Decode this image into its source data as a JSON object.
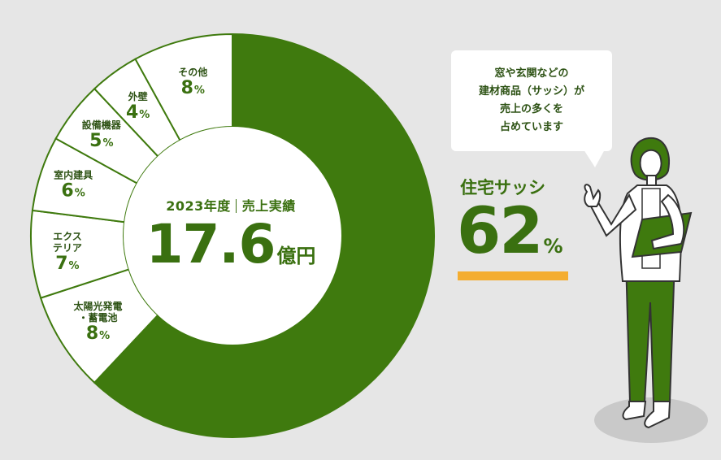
{
  "chart_data": {
    "type": "pie",
    "title_year": "2023年度",
    "title_label": "売上実績",
    "total_value": "17.6",
    "total_unit": "億円",
    "unit": "%",
    "slices": [
      {
        "label": "住宅サッシ",
        "value": 62
      },
      {
        "label": "太陽光発電・蓄電池",
        "value": 8
      },
      {
        "label": "エクステリア",
        "value": 7
      },
      {
        "label": "室内建具",
        "value": 6
      },
      {
        "label": "設備機器",
        "value": 5
      },
      {
        "label": "外壁",
        "value": 4
      },
      {
        "label": "その他",
        "value": 8
      }
    ],
    "colors": {
      "highlight": "#3f7a0e",
      "other": "#ffffff",
      "border": "#3f7a0e",
      "accent_bar": "#f4ad30",
      "background": "#e6e6e6"
    }
  },
  "callout": {
    "lines": [
      "窓や玄関などの",
      "建材商品（サッシ）が",
      "売上の多くを",
      "占めています"
    ]
  },
  "highlight": {
    "label": "住宅サッシ",
    "value": "62",
    "unit": "%"
  },
  "illustration": {
    "name": "presenter-person"
  }
}
